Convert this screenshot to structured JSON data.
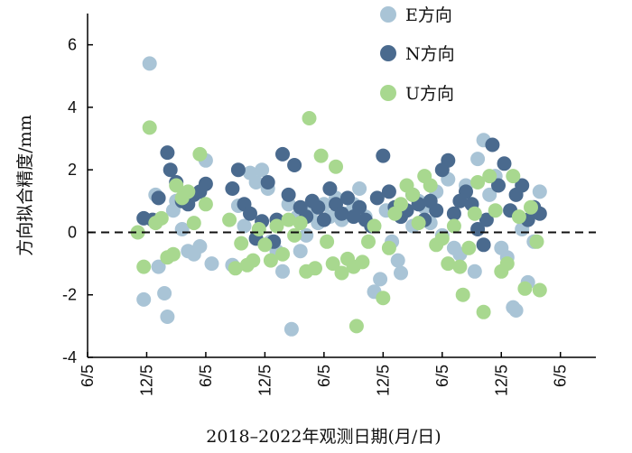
{
  "chart_data": {
    "type": "scatter",
    "xlabel": "2018–2022年观测日期(月/日)",
    "ylabel": "方向拟合精度/mm",
    "ylim": [
      -4,
      7
    ],
    "yticks": [
      -4,
      -2,
      0,
      2,
      4,
      6
    ],
    "xticks": [
      "6/5",
      "12/5",
      "6/5",
      "12/5",
      "6/5",
      "12/5",
      "6/5",
      "12/5",
      "6/5"
    ],
    "xlim": [
      0,
      8.6
    ],
    "reference_line": {
      "y": 0,
      "style": "dashed"
    },
    "legend": {
      "position": "top-right"
    },
    "series": [
      {
        "name": "E方向",
        "color": "#a9c4d6",
        "points": [
          [
            0.95,
            -2.15
          ],
          [
            1.05,
            5.4
          ],
          [
            1.15,
            1.2
          ],
          [
            1.2,
            -1.1
          ],
          [
            1.3,
            -1.95
          ],
          [
            1.35,
            -2.7
          ],
          [
            1.45,
            0.7
          ],
          [
            1.5,
            1.0
          ],
          [
            1.6,
            0.1
          ],
          [
            1.7,
            -0.6
          ],
          [
            1.8,
            -0.7
          ],
          [
            1.9,
            -0.45
          ],
          [
            2.0,
            2.3
          ],
          [
            2.1,
            -1.0
          ],
          [
            2.45,
            -1.05
          ],
          [
            2.55,
            0.85
          ],
          [
            2.65,
            0.2
          ],
          [
            2.75,
            1.9
          ],
          [
            2.85,
            1.6
          ],
          [
            2.95,
            2.0
          ],
          [
            3.05,
            1.4
          ],
          [
            3.1,
            -0.3
          ],
          [
            3.2,
            -0.6
          ],
          [
            3.3,
            -1.25
          ],
          [
            3.4,
            0.9
          ],
          [
            3.45,
            -3.1
          ],
          [
            3.55,
            0.5
          ],
          [
            3.6,
            -0.6
          ],
          [
            3.7,
            -0.1
          ],
          [
            3.8,
            0.7
          ],
          [
            3.9,
            0.3
          ],
          [
            4.0,
            0.9
          ],
          [
            4.1,
            0.5
          ],
          [
            4.2,
            1.1
          ],
          [
            4.3,
            0.4
          ],
          [
            4.4,
            0.6
          ],
          [
            4.5,
            0.9
          ],
          [
            4.6,
            1.4
          ],
          [
            4.7,
            0.5
          ],
          [
            4.85,
            -1.9
          ],
          [
            4.95,
            -1.5
          ],
          [
            5.05,
            0.7
          ],
          [
            5.15,
            -0.3
          ],
          [
            5.25,
            -0.9
          ],
          [
            5.3,
            -1.3
          ],
          [
            5.4,
            0.7
          ],
          [
            5.5,
            0.2
          ],
          [
            5.6,
            1.0
          ],
          [
            5.7,
            0.8
          ],
          [
            5.8,
            0.3
          ],
          [
            5.9,
            1.3
          ],
          [
            6.0,
            -0.1
          ],
          [
            6.1,
            1.7
          ],
          [
            6.2,
            -0.5
          ],
          [
            6.3,
            -0.7
          ],
          [
            6.4,
            1.5
          ],
          [
            6.55,
            -1.25
          ],
          [
            6.6,
            2.35
          ],
          [
            6.7,
            2.95
          ],
          [
            6.8,
            1.2
          ],
          [
            6.9,
            1.8
          ],
          [
            7.0,
            -0.5
          ],
          [
            7.1,
            -0.8
          ],
          [
            7.2,
            -2.4
          ],
          [
            7.25,
            -2.5
          ],
          [
            7.35,
            0.1
          ],
          [
            7.45,
            -1.6
          ],
          [
            7.55,
            -0.3
          ],
          [
            7.65,
            1.3
          ]
        ]
      },
      {
        "name": "N方向",
        "color": "#4a6a8e",
        "points": [
          [
            0.95,
            0.45
          ],
          [
            1.1,
            0.4
          ],
          [
            1.2,
            1.1
          ],
          [
            1.35,
            2.55
          ],
          [
            1.4,
            2.0
          ],
          [
            1.5,
            1.6
          ],
          [
            1.6,
            1.0
          ],
          [
            1.7,
            0.9
          ],
          [
            1.8,
            1.2
          ],
          [
            1.9,
            1.3
          ],
          [
            2.0,
            1.55
          ],
          [
            2.45,
            1.4
          ],
          [
            2.55,
            2.0
          ],
          [
            2.65,
            0.9
          ],
          [
            2.75,
            0.6
          ],
          [
            2.85,
            -0.2
          ],
          [
            2.95,
            0.35
          ],
          [
            3.05,
            1.6
          ],
          [
            3.15,
            -0.3
          ],
          [
            3.2,
            0.4
          ],
          [
            3.3,
            2.5
          ],
          [
            3.4,
            1.2
          ],
          [
            3.5,
            2.15
          ],
          [
            3.6,
            0.8
          ],
          [
            3.7,
            0.5
          ],
          [
            3.8,
            1.0
          ],
          [
            3.9,
            0.8
          ],
          [
            4.0,
            0.4
          ],
          [
            4.1,
            1.4
          ],
          [
            4.2,
            0.9
          ],
          [
            4.3,
            0.6
          ],
          [
            4.4,
            1.1
          ],
          [
            4.5,
            0.5
          ],
          [
            4.6,
            0.8
          ],
          [
            4.7,
            0.4
          ],
          [
            4.8,
            0.2
          ],
          [
            4.9,
            1.1
          ],
          [
            5.0,
            2.45
          ],
          [
            5.1,
            1.3
          ],
          [
            5.2,
            0.8
          ],
          [
            5.3,
            0.5
          ],
          [
            5.4,
            0.7
          ],
          [
            5.5,
            1.2
          ],
          [
            5.6,
            0.9
          ],
          [
            5.7,
            0.4
          ],
          [
            5.8,
            1.0
          ],
          [
            5.9,
            0.7
          ],
          [
            6.0,
            2.0
          ],
          [
            6.1,
            2.3
          ],
          [
            6.2,
            0.6
          ],
          [
            6.3,
            1.0
          ],
          [
            6.4,
            1.3
          ],
          [
            6.5,
            0.9
          ],
          [
            6.6,
            0.1
          ],
          [
            6.7,
            -0.4
          ],
          [
            6.75,
            0.4
          ],
          [
            6.85,
            2.8
          ],
          [
            6.95,
            1.5
          ],
          [
            7.05,
            2.2
          ],
          [
            7.15,
            0.7
          ],
          [
            7.25,
            1.2
          ],
          [
            7.35,
            1.5
          ],
          [
            7.45,
            0.4
          ],
          [
            7.55,
            0.8
          ],
          [
            7.65,
            0.6
          ]
        ]
      },
      {
        "name": "U方向",
        "color": "#a8d88f",
        "points": [
          [
            0.85,
            0.0
          ],
          [
            0.95,
            -1.1
          ],
          [
            1.05,
            3.35
          ],
          [
            1.15,
            0.3
          ],
          [
            1.25,
            0.45
          ],
          [
            1.35,
            -0.8
          ],
          [
            1.45,
            -0.7
          ],
          [
            1.5,
            1.5
          ],
          [
            1.6,
            1.1
          ],
          [
            1.7,
            1.3
          ],
          [
            1.8,
            0.3
          ],
          [
            1.9,
            2.5
          ],
          [
            2.0,
            0.9
          ],
          [
            2.4,
            0.4
          ],
          [
            2.5,
            -1.15
          ],
          [
            2.6,
            -0.35
          ],
          [
            2.7,
            -1.05
          ],
          [
            2.8,
            -0.9
          ],
          [
            2.9,
            0.1
          ],
          [
            3.0,
            -0.4
          ],
          [
            3.1,
            -0.9
          ],
          [
            3.2,
            0.2
          ],
          [
            3.3,
            -0.7
          ],
          [
            3.4,
            0.4
          ],
          [
            3.5,
            -0.1
          ],
          [
            3.6,
            0.3
          ],
          [
            3.7,
            -1.25
          ],
          [
            3.75,
            3.65
          ],
          [
            3.85,
            -1.15
          ],
          [
            3.95,
            2.45
          ],
          [
            4.05,
            -0.3
          ],
          [
            4.15,
            -1.0
          ],
          [
            4.2,
            2.1
          ],
          [
            4.3,
            -1.3
          ],
          [
            4.4,
            -0.85
          ],
          [
            4.5,
            -1.1
          ],
          [
            4.55,
            -3.0
          ],
          [
            4.65,
            -0.95
          ],
          [
            4.75,
            -0.3
          ],
          [
            4.85,
            0.2
          ],
          [
            5.0,
            -2.1
          ],
          [
            5.1,
            -0.5
          ],
          [
            5.2,
            0.6
          ],
          [
            5.3,
            0.9
          ],
          [
            5.4,
            1.5
          ],
          [
            5.5,
            1.2
          ],
          [
            5.6,
            0.3
          ],
          [
            5.7,
            1.8
          ],
          [
            5.8,
            1.5
          ],
          [
            5.9,
            -0.4
          ],
          [
            6.0,
            -0.2
          ],
          [
            6.1,
            -1.0
          ],
          [
            6.2,
            0.2
          ],
          [
            6.3,
            -1.1
          ],
          [
            6.35,
            -2.0
          ],
          [
            6.45,
            -0.5
          ],
          [
            6.55,
            0.6
          ],
          [
            6.6,
            1.6
          ],
          [
            6.7,
            -2.55
          ],
          [
            6.8,
            1.8
          ],
          [
            6.9,
            0.7
          ],
          [
            7.0,
            -1.25
          ],
          [
            7.1,
            -1.0
          ],
          [
            7.2,
            1.8
          ],
          [
            7.3,
            0.5
          ],
          [
            7.4,
            -1.8
          ],
          [
            7.5,
            0.8
          ],
          [
            7.6,
            -0.3
          ],
          [
            7.65,
            -1.85
          ]
        ]
      }
    ]
  }
}
